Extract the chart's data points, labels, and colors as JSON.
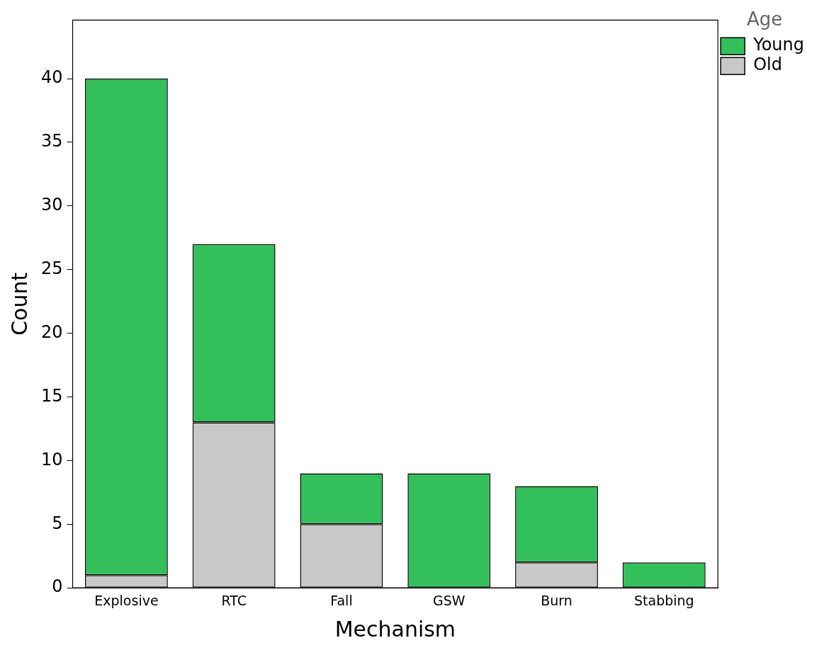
{
  "chart_data": {
    "type": "bar",
    "xlabel": "Mechanism",
    "ylabel": "Count",
    "legend_title": "Age",
    "categories": [
      "Explosive",
      "RTC",
      "Fall",
      "GSW",
      "Burn",
      "Stabbing"
    ],
    "stacked": true,
    "series": [
      {
        "name": "Old",
        "color": "#c8c8c8",
        "values": [
          1,
          13,
          5,
          0,
          2,
          0
        ]
      },
      {
        "name": "Young",
        "color": "#33bf5a",
        "values": [
          39,
          14,
          4,
          9,
          6,
          2
        ]
      }
    ],
    "ylim": [
      0,
      44.6
    ],
    "yticks": [
      0,
      5,
      10,
      15,
      20,
      25,
      30,
      35,
      40
    ],
    "grid": false,
    "legend": "top right"
  }
}
